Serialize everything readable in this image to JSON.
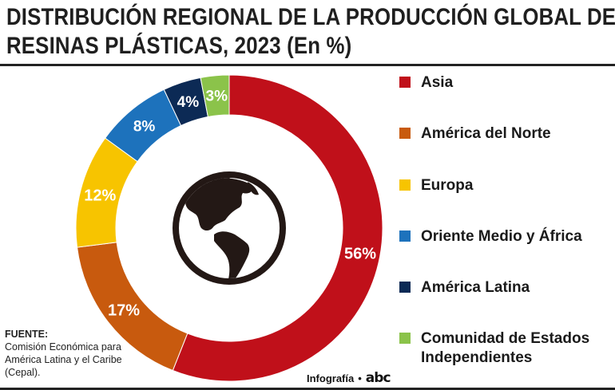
{
  "title_lines": [
    "DISTRIBUCIÓN REGIONAL DE LA PRODUCCIÓN GLOBAL DE",
    "RESINAS PLÁSTICAS, 2023 (En %)"
  ],
  "chart_data": {
    "type": "pie",
    "title": "DISTRIBUCIÓN REGIONAL DE LA PRODUCCIÓN GLOBAL DE RESINAS PLÁSTICAS, 2023 (En %)",
    "categories": [
      "Asia",
      "América del Norte",
      "Europa",
      "Oriente Medio y África",
      "América Latina",
      "Comunidad de Estados Independientes"
    ],
    "values": [
      56,
      17,
      12,
      8,
      4,
      3
    ],
    "value_labels": [
      "56%",
      "17%",
      "12%",
      "8%",
      "4%",
      "3%"
    ],
    "colors": [
      "#c0101a",
      "#c85a0e",
      "#f7c400",
      "#1d72bc",
      "#0c2a55",
      "#8bc34a"
    ],
    "style": "donut",
    "legend_position": "right",
    "center_icon": "globe-americas-icon"
  },
  "legend": [
    {
      "label": "Asia",
      "color": "#c0101a"
    },
    {
      "label": "América del Norte",
      "color": "#c85a0e"
    },
    {
      "label": "Europa",
      "color": "#f7c400"
    },
    {
      "label": "Oriente Medio y África",
      "color": "#1d72bc"
    },
    {
      "label": "América Latina",
      "color": "#0c2a55"
    },
    {
      "label": "Comunidad de Estados Independientes",
      "color": "#8bc34a"
    }
  ],
  "source": {
    "title": "FUENTE:",
    "text": "Comisión Económica para América Latina y el Caribe (Cepal)."
  },
  "credit": {
    "label": "Infografía",
    "separator": "•",
    "brand": "abc"
  }
}
